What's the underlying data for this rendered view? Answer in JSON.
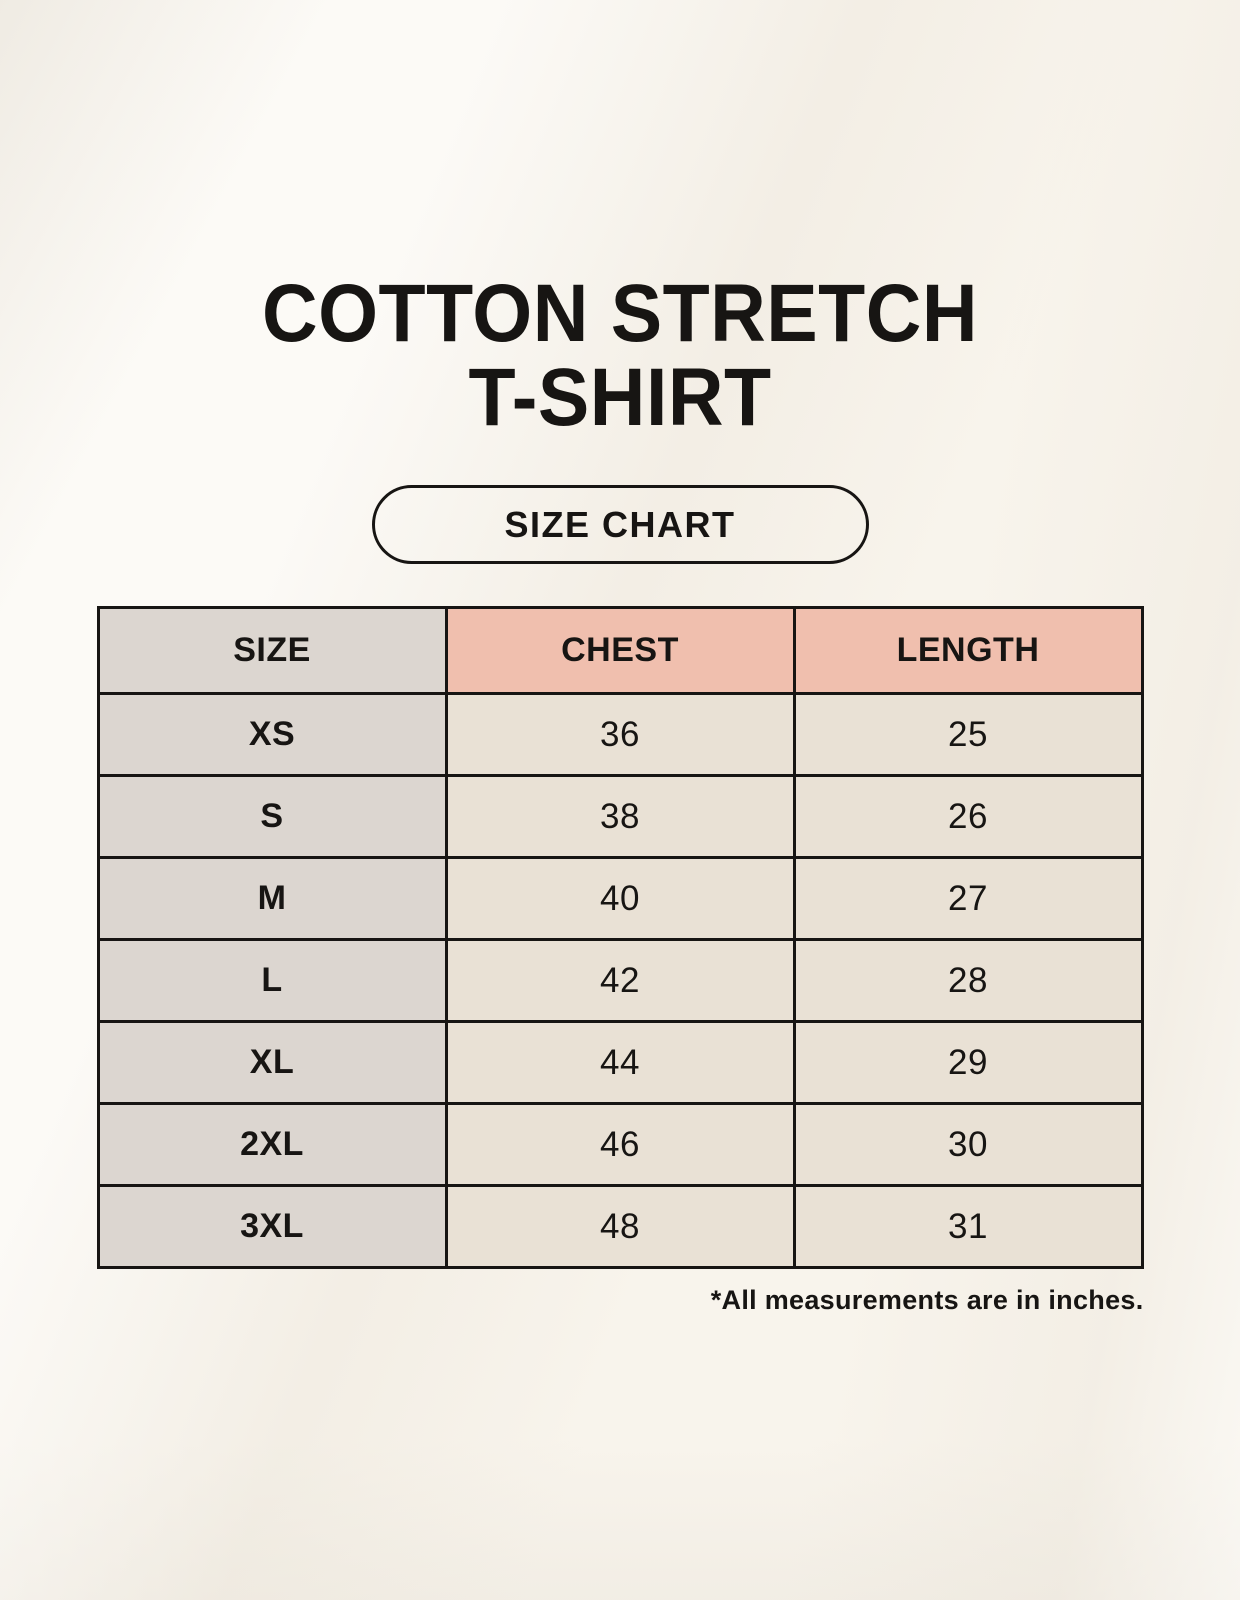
{
  "page": {
    "title_line1": "COTTON STRETCH",
    "title_line2": "T-SHIRT",
    "badge_label": "SIZE CHART",
    "footnote": "*All measurements are in inches."
  },
  "colors": {
    "background": "#f8f4ec",
    "size_column_bg": "#dcd6d0",
    "accent_header_bg": "#f0bfae",
    "value_cell_bg": "#e9e1d5",
    "border": "#171513",
    "text": "#171513"
  },
  "chart_data": {
    "type": "table",
    "title": "Cotton Stretch T-Shirt Size Chart",
    "columns": [
      "SIZE",
      "CHEST",
      "LENGTH"
    ],
    "rows": [
      [
        "XS",
        "36",
        "25"
      ],
      [
        "S",
        "38",
        "26"
      ],
      [
        "M",
        "40",
        "27"
      ],
      [
        "L",
        "42",
        "28"
      ],
      [
        "XL",
        "44",
        "29"
      ],
      [
        "2XL",
        "46",
        "30"
      ],
      [
        "3XL",
        "48",
        "31"
      ]
    ],
    "units": "inches",
    "layout_hints": {
      "size_column_shaded": true,
      "accent_on_measure_headers": true,
      "grid": true
    }
  }
}
